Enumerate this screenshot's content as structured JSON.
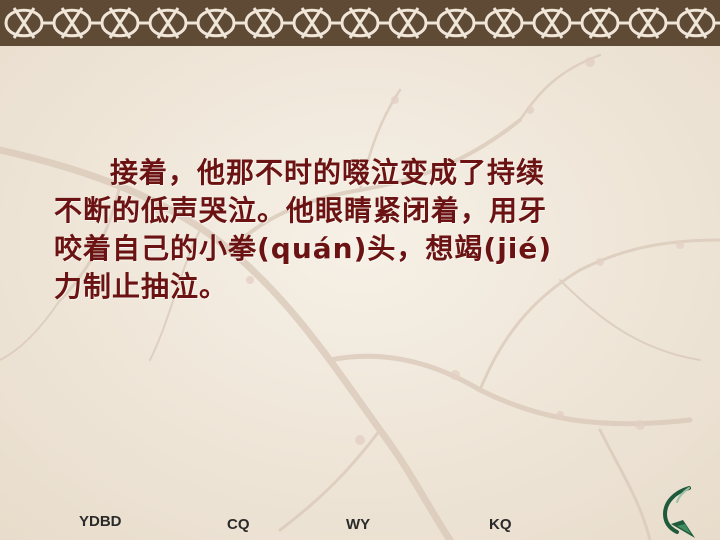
{
  "slide": {
    "paragraph_lines": [
      "接着，他那不时的啜泣变成了持续",
      "不断的低声哭泣。他眼睛紧闭着，用牙",
      "咬着自己的小拳(quán)头，想竭(jié)",
      "力制止抽泣。"
    ]
  },
  "nav": {
    "links": [
      "YDBD",
      "CQ",
      "WY",
      "KQ"
    ]
  },
  "icons": {
    "return": "return-arrow-icon",
    "border": "celtic-knot-border",
    "background": "plum-blossom-branch"
  },
  "colors": {
    "text": "#6b1212",
    "background": "#f1e9dd",
    "border_dark": "#5f4a36",
    "border_light": "#efe6d8",
    "icon_green": "#1f5a3c"
  }
}
